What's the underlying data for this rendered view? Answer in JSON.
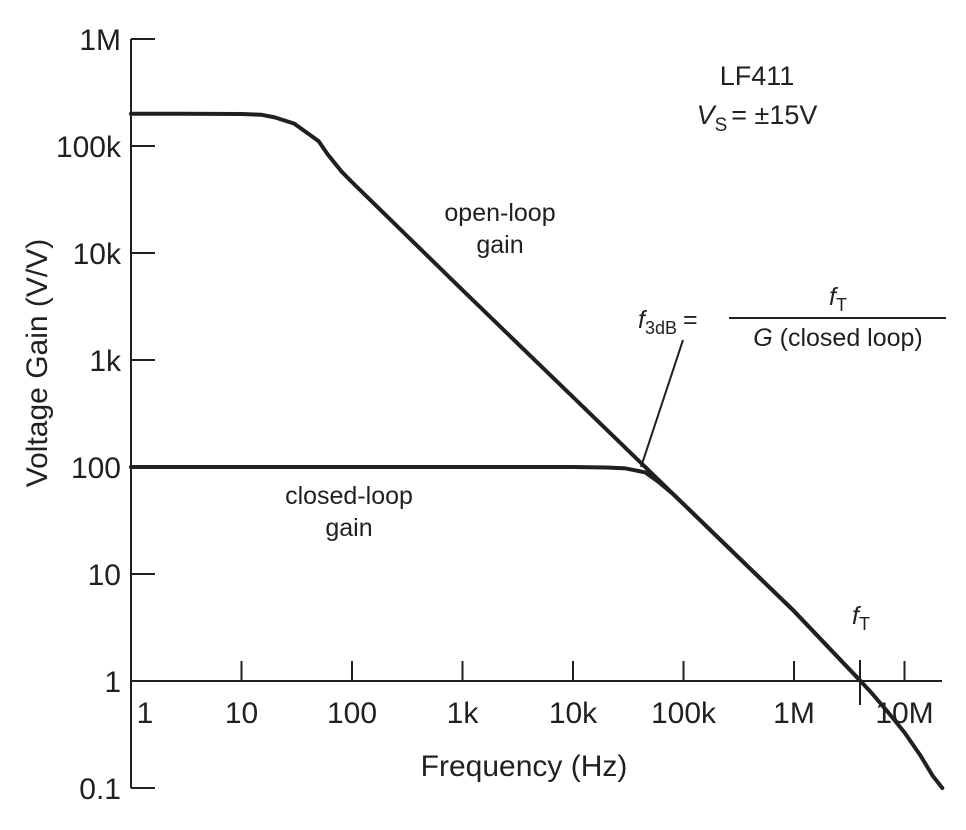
{
  "chart_data": {
    "type": "line",
    "scale": {
      "x": "log",
      "y": "log"
    },
    "xlabel": "Frequency (Hz)",
    "ylabel": "Voltage Gain  (V/V)",
    "xlim": [
      0.9,
      25000000
    ],
    "ylim": [
      0.1,
      1000000
    ],
    "x_ticks": [
      {
        "value": 1,
        "label": "1"
      },
      {
        "value": 10,
        "label": "10"
      },
      {
        "value": 100,
        "label": "100"
      },
      {
        "value": 1000,
        "label": "1k"
      },
      {
        "value": 10000,
        "label": "10k"
      },
      {
        "value": 100000,
        "label": "100k"
      },
      {
        "value": 1000000,
        "label": "1M"
      },
      {
        "value": 10000000,
        "label": "10M"
      }
    ],
    "y_ticks": [
      {
        "value": 0.1,
        "label": "0.1"
      },
      {
        "value": 1,
        "label": "1"
      },
      {
        "value": 10,
        "label": "10"
      },
      {
        "value": 100,
        "label": "100"
      },
      {
        "value": 1000,
        "label": "1k"
      },
      {
        "value": 10000,
        "label": "10k"
      },
      {
        "value": 100000,
        "label": "100k"
      },
      {
        "value": 1000000,
        "label": "1M"
      }
    ],
    "device": {
      "name": "LF411",
      "supply_symbol": "V",
      "supply_sub": "S",
      "supply_value": "= ±15V"
    },
    "series": [
      {
        "label_lines": [
          "open-loop",
          "gain"
        ],
        "x": [
          0.9,
          1,
          3,
          10,
          15,
          20,
          30,
          40,
          50,
          60,
          80,
          100,
          1000,
          10000,
          100000,
          1000000,
          4000000,
          5000000,
          7000000,
          10000000,
          14000000,
          18000000,
          22000000
        ],
        "y": [
          200000,
          200000,
          200000,
          199000,
          196000,
          185000,
          162000,
          131000,
          111000,
          84000,
          58000,
          46000,
          4500,
          450,
          45,
          4.5,
          1.0,
          0.78,
          0.52,
          0.33,
          0.2,
          0.13,
          0.1
        ]
      },
      {
        "label_lines": [
          "closed-loop",
          "gain"
        ],
        "x": [
          0.9,
          1,
          10,
          100,
          1000,
          10000,
          20000,
          30000,
          45000,
          60000,
          80000,
          100000,
          150000,
          300000,
          1000000,
          4000000
        ],
        "y": [
          100,
          100,
          100,
          100,
          100,
          100,
          99,
          97,
          89,
          72,
          56,
          45,
          30,
          15,
          4.5,
          1.0
        ]
      }
    ],
    "annotations": {
      "f3db": {
        "symbol": "f",
        "sub": "3dB",
        "eq": "=",
        "num_symbol": "f",
        "num_sub": "T",
        "den_symbol": "G",
        "den_rest": " (closed loop)",
        "x": 40000,
        "y": 90
      },
      "ft": {
        "symbol": "f",
        "sub": "T",
        "x": 4000000,
        "y": 1
      }
    }
  }
}
